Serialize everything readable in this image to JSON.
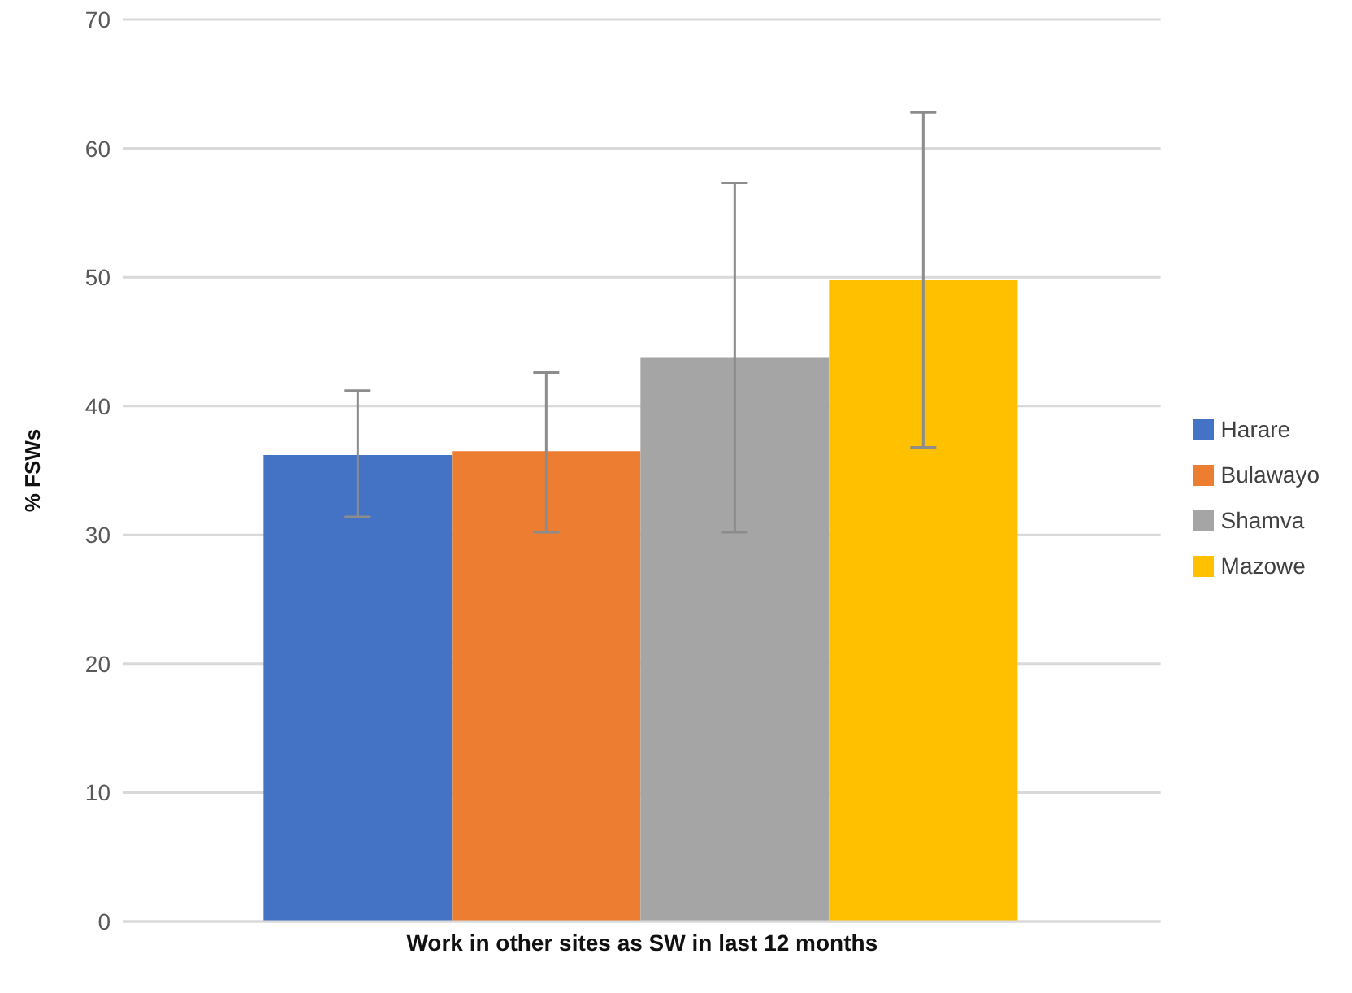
{
  "chart_data": {
    "type": "bar",
    "ylabel": "% FSWs",
    "categories": [
      "Work in other sites as SW in last 12 months"
    ],
    "series": [
      {
        "name": "Harare",
        "color": "#4472c4",
        "values": [
          36.2
        ],
        "errors": [
          [
            31.4,
            41.2
          ]
        ]
      },
      {
        "name": "Bulawayo",
        "color": "#ed7d31",
        "values": [
          36.5
        ],
        "errors": [
          [
            30.2,
            42.6
          ]
        ]
      },
      {
        "name": "Shamva",
        "color": "#a5a5a5",
        "values": [
          43.8
        ],
        "errors": [
          [
            30.2,
            57.3
          ]
        ]
      },
      {
        "name": "Mazowe",
        "color": "#ffc000",
        "values": [
          49.8
        ],
        "errors": [
          [
            36.8,
            62.8
          ]
        ]
      }
    ],
    "ylim": [
      0,
      70
    ],
    "yticks": [
      0,
      10,
      20,
      30,
      40,
      50,
      60,
      70
    ],
    "grid": "y",
    "legend": "right"
  }
}
